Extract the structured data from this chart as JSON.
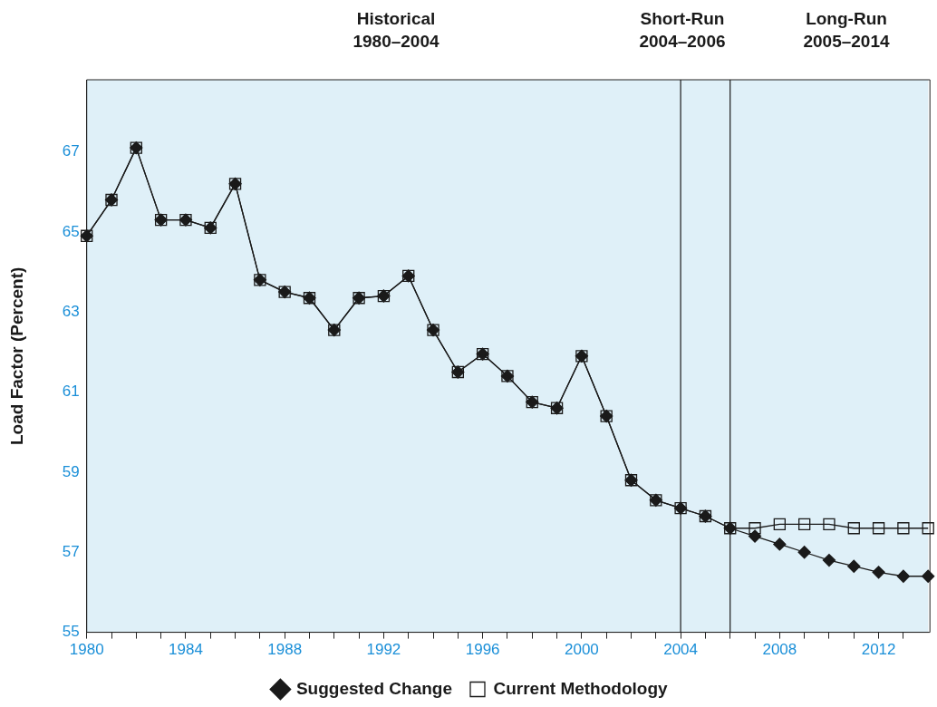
{
  "chart_data": {
    "type": "line",
    "ylabel": "Load Factor (Percent)",
    "x": [
      1980,
      1981,
      1982,
      1983,
      1984,
      1985,
      1986,
      1987,
      1988,
      1989,
      1990,
      1991,
      1992,
      1993,
      1994,
      1995,
      1996,
      1997,
      1998,
      1999,
      2000,
      2001,
      2002,
      2003,
      2004,
      2005,
      2006,
      2007,
      2008,
      2009,
      2010,
      2011,
      2012,
      2013,
      2014
    ],
    "series": [
      {
        "name": "Current Methodology",
        "color": "#1a1a1a",
        "marker": "square",
        "values": [
          64.9,
          65.8,
          67.1,
          65.3,
          65.3,
          65.1,
          66.2,
          63.8,
          63.5,
          63.35,
          62.55,
          63.35,
          63.4,
          63.9,
          62.55,
          61.5,
          61.95,
          61.4,
          60.75,
          60.6,
          61.9,
          60.4,
          58.8,
          58.3,
          58.1,
          57.9,
          57.6,
          57.6,
          57.7,
          57.7,
          57.7,
          57.6,
          57.6,
          57.6,
          57.6
        ]
      },
      {
        "name": "Suggested Change",
        "color": "#1a1a1a",
        "marker": "diamond",
        "values": [
          64.9,
          65.8,
          67.1,
          65.3,
          65.3,
          65.1,
          66.2,
          63.8,
          63.5,
          63.35,
          62.55,
          63.35,
          63.4,
          63.9,
          62.55,
          61.5,
          61.95,
          61.4,
          60.75,
          60.6,
          61.9,
          60.4,
          58.8,
          58.3,
          58.1,
          57.9,
          57.6,
          57.4,
          57.2,
          57.0,
          56.8,
          56.65,
          56.5,
          56.4,
          56.4
        ]
      }
    ],
    "xlim": [
      1980,
      2014
    ],
    "xticks": [
      1980,
      {
        "value": 1981,
        "label": null
      },
      {
        "value": 1982,
        "label": null
      },
      {
        "value": 1983,
        "label": null
      },
      1984,
      {
        "value": 1985,
        "label": null
      },
      {
        "value": 1986,
        "label": null
      },
      {
        "value": 1987,
        "label": null
      },
      1988,
      {
        "value": 1989,
        "label": null
      },
      {
        "value": 1990,
        "label": null
      },
      {
        "value": 1991,
        "label": null
      },
      1992,
      {
        "value": 1993,
        "label": null
      },
      {
        "value": 1994,
        "label": null
      },
      {
        "value": 1995,
        "label": null
      },
      1996,
      {
        "value": 1997,
        "label": null
      },
      {
        "value": 1998,
        "label": null
      },
      {
        "value": 1999,
        "label": null
      },
      2000,
      {
        "value": 2001,
        "label": null
      },
      {
        "value": 2002,
        "label": null
      },
      {
        "value": 2003,
        "label": null
      },
      2004,
      {
        "value": 2005,
        "label": null
      },
      {
        "value": 2006,
        "label": null
      },
      {
        "value": 2007,
        "label": null
      },
      2008,
      {
        "value": 2009,
        "label": null
      },
      {
        "value": 2010,
        "label": null
      },
      {
        "value": 2011,
        "label": null
      },
      2012,
      {
        "value": 2013,
        "label": null
      }
    ],
    "ylim": [
      55,
      68.8
    ],
    "yticks": [
      55,
      57,
      59,
      61,
      63,
      65,
      67
    ],
    "ref_lines": [
      {
        "axis": "x",
        "value": 2004,
        "label": null,
        "color": "#1a1a1a"
      },
      {
        "axis": "x",
        "value": 2006,
        "label": null,
        "color": "#1a1a1a"
      }
    ],
    "annotations": [
      "Historical\n1980–2004",
      "Short-Run\n2004–2006",
      "Long-Run\n2005–2014"
    ],
    "legend": "bottom",
    "line_style": "solid"
  }
}
